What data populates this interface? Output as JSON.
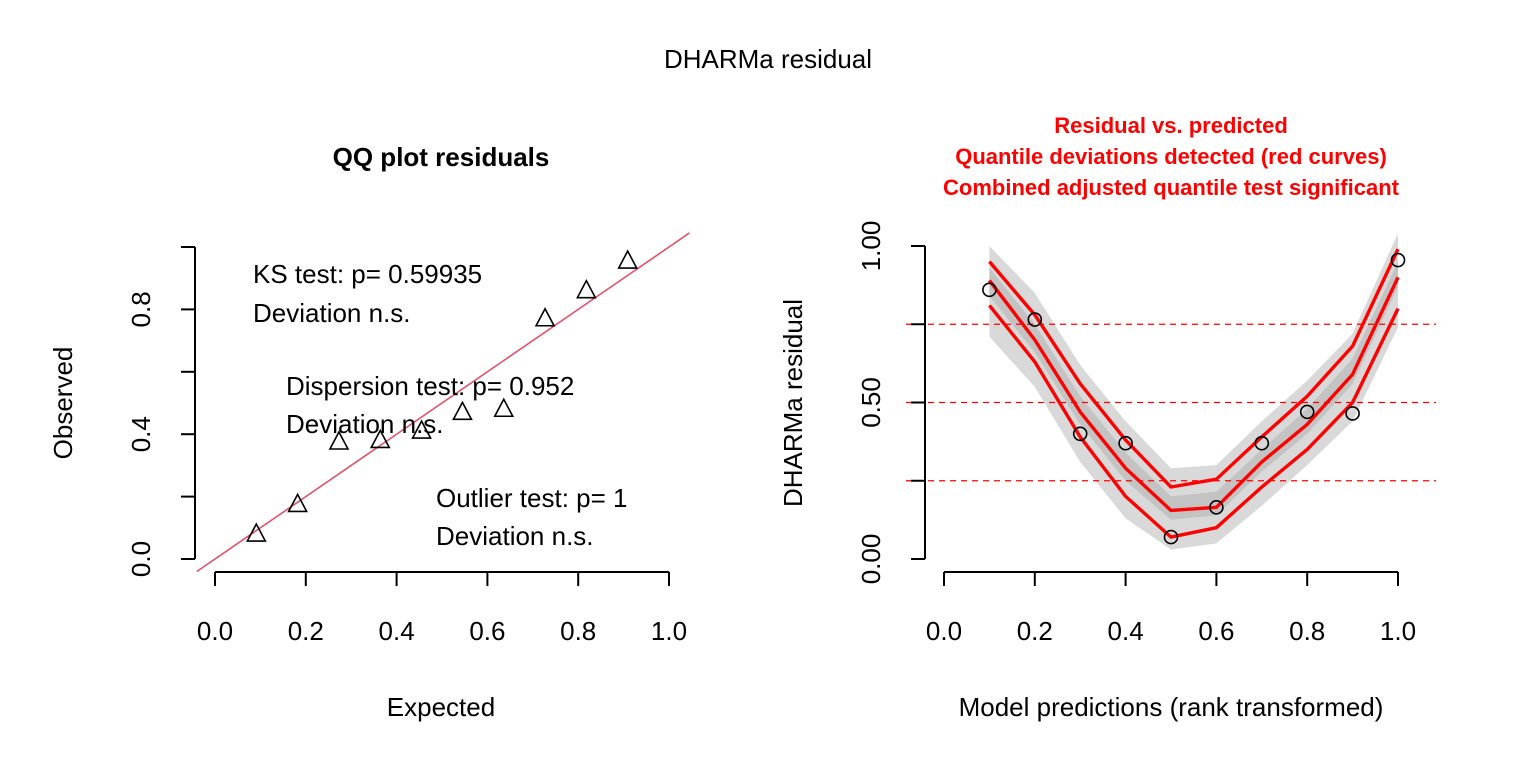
{
  "figure_title": "DHARMa residual",
  "colors": {
    "qq_line": "#df536b",
    "quantile_curve": "#ff0000",
    "reference_line": "#ff0000",
    "band_outer": "#d9d9d9",
    "band_inner": "#bebebe"
  },
  "chart_data": [
    {
      "type": "scatter",
      "title": "QQ plot residuals",
      "xlabel": "Expected",
      "ylabel": "Observed",
      "xlim": [
        0,
        1
      ],
      "ylim": [
        0,
        1
      ],
      "xticks": [
        "0.0",
        "0.2",
        "0.4",
        "0.6",
        "0.8",
        "1.0"
      ],
      "yticks": [
        "0.0",
        "0.4",
        "0.8"
      ],
      "grid": false,
      "marker": "triangle",
      "points": [
        {
          "x": 0.091,
          "y": 0.08
        },
        {
          "x": 0.182,
          "y": 0.175
        },
        {
          "x": 0.273,
          "y": 0.375
        },
        {
          "x": 0.364,
          "y": 0.38
        },
        {
          "x": 0.455,
          "y": 0.41
        },
        {
          "x": 0.545,
          "y": 0.47
        },
        {
          "x": 0.636,
          "y": 0.48
        },
        {
          "x": 0.727,
          "y": 0.77
        },
        {
          "x": 0.818,
          "y": 0.86
        },
        {
          "x": 0.909,
          "y": 0.955
        }
      ],
      "reference_line": {
        "intercept": 0,
        "slope": 1
      },
      "annotations": [
        {
          "line1": "KS test: p= 0.59935",
          "line2": "Deviation  n.s."
        },
        {
          "line1": "Dispersion test: p= 0.952",
          "line2": "Deviation  n.s."
        },
        {
          "line1": "Outlier test: p= 1",
          "line2": "Deviation  n.s."
        }
      ]
    },
    {
      "type": "scatter",
      "title": "Residual vs. predicted",
      "title_lines": [
        "Residual vs. predicted",
        "Quantile deviations detected (red curves)",
        "Combined adjusted quantile test significant"
      ],
      "xlabel": "Model predictions (rank transformed)",
      "ylabel": "DHARMa residual",
      "xlim": [
        0,
        1
      ],
      "ylim": [
        0,
        1
      ],
      "xticks": [
        "0.0",
        "0.2",
        "0.4",
        "0.6",
        "0.8",
        "1.0"
      ],
      "yticks": [
        "0.00",
        "0.50",
        "1.00"
      ],
      "grid": false,
      "marker": "circle",
      "points": [
        {
          "x": 0.1,
          "y": 0.86
        },
        {
          "x": 0.2,
          "y": 0.765
        },
        {
          "x": 0.3,
          "y": 0.4
        },
        {
          "x": 0.4,
          "y": 0.37
        },
        {
          "x": 0.5,
          "y": 0.07
        },
        {
          "x": 0.6,
          "y": 0.165
        },
        {
          "x": 0.7,
          "y": 0.37
        },
        {
          "x": 0.8,
          "y": 0.47
        },
        {
          "x": 0.9,
          "y": 0.465
        },
        {
          "x": 1.0,
          "y": 0.955
        }
      ],
      "reference_levels": [
        0.25,
        0.5,
        0.75
      ],
      "quantile_x": [
        0.1,
        0.2,
        0.3,
        0.4,
        0.5,
        0.6,
        0.7,
        0.8,
        0.9,
        1.0
      ],
      "quantile_curves": [
        {
          "name": "0.25",
          "values": [
            0.81,
            0.63,
            0.39,
            0.2,
            0.07,
            0.1,
            0.23,
            0.35,
            0.5,
            0.8
          ]
        },
        {
          "name": "0.5",
          "values": [
            0.89,
            0.7,
            0.47,
            0.29,
            0.155,
            0.165,
            0.31,
            0.43,
            0.59,
            0.9
          ]
        },
        {
          "name": "0.75",
          "values": [
            0.95,
            0.78,
            0.56,
            0.38,
            0.23,
            0.255,
            0.39,
            0.52,
            0.68,
            0.99
          ]
        }
      ],
      "envelope_outer": {
        "lower": [
          0.71,
          0.55,
          0.31,
          0.13,
          0.03,
          0.05,
          0.17,
          0.3,
          0.44,
          0.74
        ],
        "upper": [
          1.0,
          0.85,
          0.62,
          0.44,
          0.29,
          0.3,
          0.44,
          0.57,
          0.72,
          1.04
        ]
      },
      "envelope_inner": {
        "lower": [
          0.84,
          0.66,
          0.43,
          0.25,
          0.125,
          0.14,
          0.28,
          0.4,
          0.56,
          0.87
        ],
        "upper": [
          0.93,
          0.75,
          0.52,
          0.34,
          0.2,
          0.215,
          0.35,
          0.48,
          0.64,
          0.95
        ]
      }
    }
  ]
}
